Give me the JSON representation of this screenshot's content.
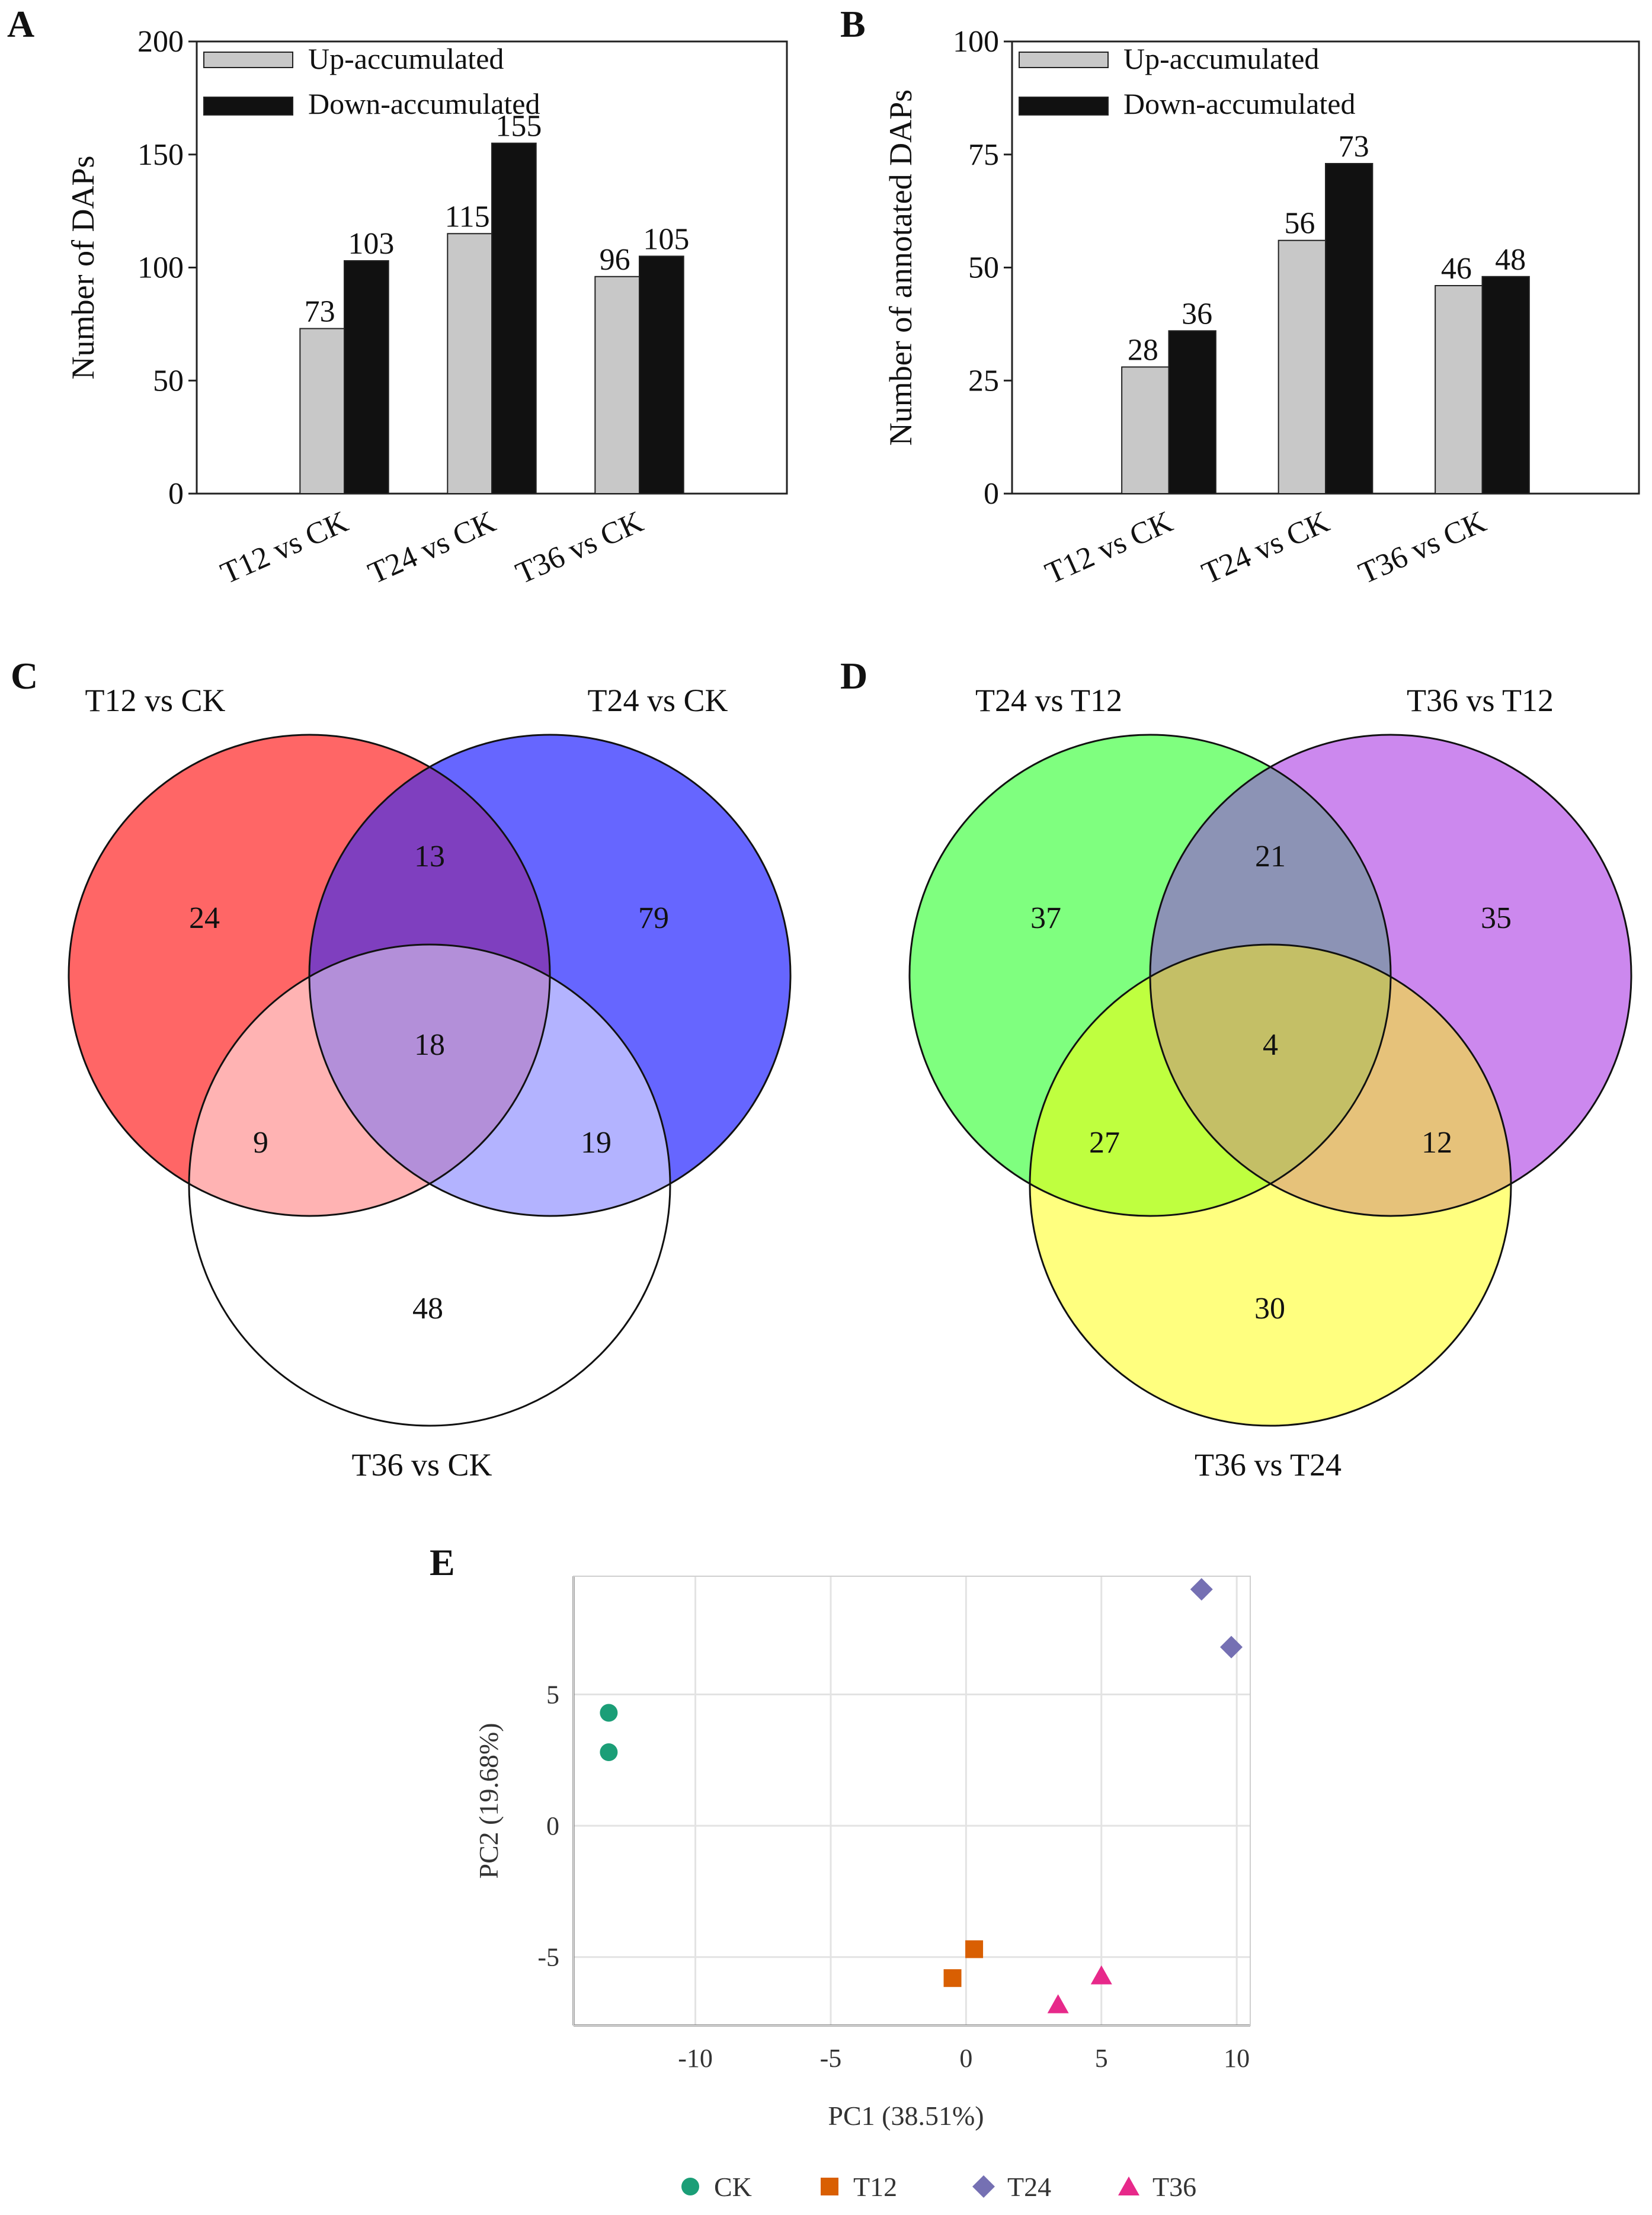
{
  "chart_data": [
    {
      "panel": "A",
      "type": "bar",
      "ylabel": "Number of DAPs",
      "ylim": [
        0,
        200
      ],
      "yticks": [
        0,
        50,
        100,
        150,
        200
      ],
      "categories": [
        "T12 vs CK",
        "T24 vs CK",
        "T36 vs CK"
      ],
      "series": [
        {
          "name": "Up-accumulated",
          "values": [
            73,
            115,
            96
          ],
          "color": "#c8c8c8"
        },
        {
          "name": "Down-accumulated",
          "values": [
            103,
            155,
            105
          ],
          "color": "#111111"
        }
      ],
      "legend": "top-left",
      "grid": false
    },
    {
      "panel": "B",
      "type": "bar",
      "ylabel": "Number of annotated DAPs",
      "ylim": [
        0,
        100
      ],
      "yticks": [
        0,
        25,
        50,
        75,
        100
      ],
      "categories": [
        "T12 vs CK",
        "T24 vs CK",
        "T36 vs CK"
      ],
      "series": [
        {
          "name": "Up-accumulated",
          "values": [
            28,
            56,
            46
          ],
          "color": "#c8c8c8"
        },
        {
          "name": "Down-accumulated",
          "values": [
            36,
            73,
            48
          ],
          "color": "#111111"
        }
      ],
      "legend": "top-left",
      "grid": false
    },
    {
      "panel": "C",
      "type": "venn",
      "sets": [
        "T12 vs CK",
        "T24 vs CK",
        "T36 vs CK"
      ],
      "colors": [
        "#ff6666",
        "#6666ff",
        "#ffffff"
      ],
      "regions": {
        "only_1": 24,
        "only_2": 79,
        "only_3": 48,
        "1_2": 13,
        "1_3": 9,
        "2_3": 19,
        "1_2_3": 18
      },
      "region_colors": {
        "1_2": "#7f3fbf",
        "1_3": "#ffb3b3",
        "2_3": "#b3b3ff",
        "1_2_3": "#b38fd9"
      }
    },
    {
      "panel": "D",
      "type": "venn",
      "sets": [
        "T24 vs T12",
        "T36 vs T12",
        "T36 vs T24"
      ],
      "colors": [
        "#7fff7f",
        "#cc88ee",
        "#ffff7f"
      ],
      "regions": {
        "only_1": 37,
        "only_2": 35,
        "only_3": 30,
        "1_2": 21,
        "1_3": 27,
        "2_3": 12,
        "1_2_3": 4
      },
      "region_colors": {
        "1_2": "#8c93b5",
        "1_3": "#bfff3f",
        "2_3": "#e6c27a",
        "1_2_3": "#c4bf66"
      }
    },
    {
      "panel": "E",
      "type": "scatter",
      "xlabel": "PC1 (38.51%)",
      "ylabel": "PC2 (19.68%)",
      "xlim": [
        -14.5,
        10.5
      ],
      "ylim": [
        -7.6,
        9.5
      ],
      "xticks": [
        -10,
        -5,
        0,
        5,
        10
      ],
      "yticks": [
        -5,
        0,
        5
      ],
      "grid": true,
      "legend": "bottom",
      "series": [
        {
          "name": "CK",
          "shape": "circle",
          "color": "#1b9e77",
          "points": [
            [
              -13.2,
              4.3
            ],
            [
              -13.2,
              2.8
            ]
          ]
        },
        {
          "name": "T12",
          "shape": "square",
          "color": "#d95f02",
          "points": [
            [
              0.3,
              -4.7
            ],
            [
              -0.5,
              -5.8
            ]
          ]
        },
        {
          "name": "T24",
          "shape": "diamond",
          "color": "#7570b3",
          "points": [
            [
              8.7,
              9.0
            ],
            [
              9.8,
              6.8
            ]
          ]
        },
        {
          "name": "T36",
          "shape": "triangle",
          "color": "#e7298a",
          "points": [
            [
              5.0,
              -5.7
            ],
            [
              3.4,
              -6.8
            ]
          ]
        }
      ]
    }
  ]
}
